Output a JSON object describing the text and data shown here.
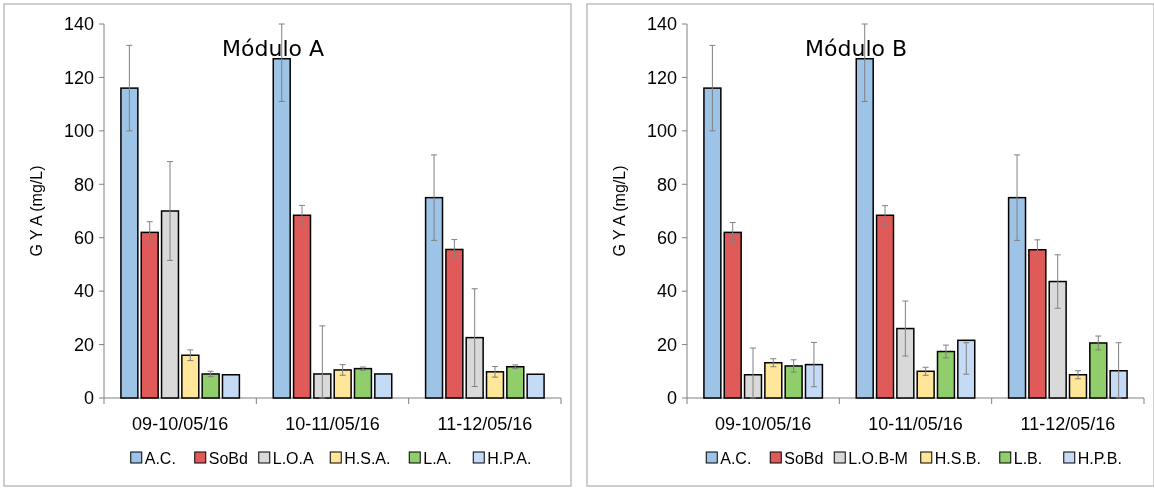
{
  "chart_data": [
    {
      "type": "bar",
      "title": "Módulo A",
      "ylabel": "G Y A  (mg/L)",
      "categories": [
        "09-10/05/16",
        "10-11/05/16",
        "11-12/05/16"
      ],
      "ylim": [
        0,
        140
      ],
      "yticks": [
        0,
        20,
        40,
        60,
        80,
        100,
        120,
        140
      ],
      "grid": false,
      "legend": "bottom",
      "series": [
        {
          "name": "A.C.",
          "color": "#9dc3e6",
          "values": [
            116,
            127,
            75
          ],
          "errors": [
            16,
            [
              111,
              140
            ],
            16
          ]
        },
        {
          "name": "SoBd",
          "color": "#e05a5a",
          "values": [
            62,
            68.4,
            55.6
          ],
          "errors": [
            4,
            3.7,
            3.7
          ]
        },
        {
          "name": "L.O.A",
          "color": "#d9d9d9",
          "values": [
            70,
            9,
            22.6
          ],
          "errors": [
            18.5,
            [
              0,
              27
            ],
            18.3
          ]
        },
        {
          "name": "H.S.A.",
          "color": "#ffe699",
          "values": [
            16,
            10.5,
            9.8
          ],
          "errors": [
            2,
            2,
            2
          ]
        },
        {
          "name": "L.A.",
          "color": "#8fce6a",
          "values": [
            9,
            11,
            11.7
          ],
          "errors": [
            1,
            0.6,
            0.7
          ]
        },
        {
          "name": "H.P.A.",
          "color": "#c5daf5",
          "values": [
            8.7,
            9,
            8.9
          ],
          "errors": [
            null,
            null,
            null
          ]
        }
      ]
    },
    {
      "type": "bar",
      "title": "Módulo B",
      "ylabel": "G Y A  (mg/L)",
      "categories": [
        "09-10/05/16",
        "10-11/05/16",
        "11-12/05/16"
      ],
      "ylim": [
        0,
        140
      ],
      "yticks": [
        0,
        20,
        40,
        60,
        80,
        100,
        120,
        140
      ],
      "grid": false,
      "legend": "bottom",
      "series": [
        {
          "name": "A.C.",
          "color": "#9dc3e6",
          "values": [
            116,
            127,
            75
          ],
          "errors": [
            16,
            [
              111,
              140
            ],
            16
          ]
        },
        {
          "name": "SoBd",
          "color": "#e05a5a",
          "values": [
            62,
            68.4,
            55.5
          ],
          "errors": [
            3.7,
            3.6,
            3.7
          ]
        },
        {
          "name": "L.O.B-M",
          "color": "#d9d9d9",
          "values": [
            8.7,
            26,
            43.6
          ],
          "errors": [
            [
              0,
              18.7
            ],
            10.3,
            10
          ]
        },
        {
          "name": "H.S.B.",
          "color": "#ffe699",
          "values": [
            13.2,
            10,
            8.7
          ],
          "errors": [
            1.5,
            1.5,
            1.5
          ]
        },
        {
          "name": "L.B.",
          "color": "#8fce6a",
          "values": [
            12,
            17.4,
            20.6
          ],
          "errors": [
            2.3,
            2.4,
            2.6
          ]
        },
        {
          "name": "H.P.B.",
          "color": "#c5daf5",
          "values": [
            12.5,
            21.6,
            10.2
          ],
          "errors": [
            8.3,
            [
              8.9,
              20.7
            ],
            [
              0,
              20.7
            ]
          ]
        }
      ]
    }
  ]
}
